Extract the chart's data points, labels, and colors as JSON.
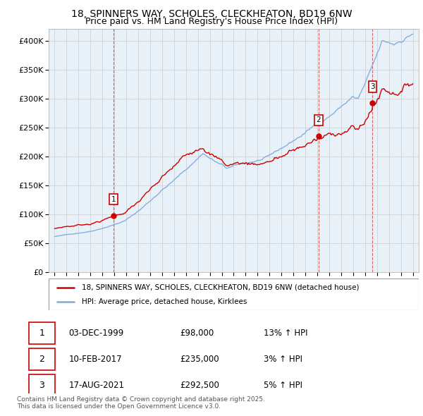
{
  "title_line1": "18, SPINNERS WAY, SCHOLES, CLECKHEATON, BD19 6NW",
  "title_line2": "Price paid vs. HM Land Registry's House Price Index (HPI)",
  "legend_label1": "18, SPINNERS WAY, SCHOLES, CLECKHEATON, BD19 6NW (detached house)",
  "legend_label2": "HPI: Average price, detached house, Kirklees",
  "sale_points": [
    {
      "label": "1",
      "date": "03-DEC-1999",
      "date_num": 1999.92,
      "price": 98000,
      "hpi_pct": "13% ↑ HPI"
    },
    {
      "label": "2",
      "date": "10-FEB-2017",
      "date_num": 2017.11,
      "price": 235000,
      "hpi_pct": "3% ↑ HPI"
    },
    {
      "label": "3",
      "date": "17-AUG-2021",
      "date_num": 2021.63,
      "price": 292500,
      "hpi_pct": "5% ↑ HPI"
    }
  ],
  "ylabel_ticks": [
    "£0",
    "£50K",
    "£100K",
    "£150K",
    "£200K",
    "£250K",
    "£300K",
    "£350K",
    "£400K"
  ],
  "ytick_values": [
    0,
    50000,
    100000,
    150000,
    200000,
    250000,
    300000,
    350000,
    400000
  ],
  "ylim": [
    0,
    420000
  ],
  "line_color_red": "#cc0000",
  "line_color_blue": "#7aaadd",
  "plot_bg_color": "#e8f0f8",
  "grid_color": "#cccccc",
  "background_color": "#ffffff",
  "footnote": "Contains HM Land Registry data © Crown copyright and database right 2025.\nThis data is licensed under the Open Government Licence v3.0.",
  "table_rows": [
    {
      "num": "1",
      "date": "03-DEC-1999",
      "price": "£98,000",
      "hpi": "13% ↑ HPI"
    },
    {
      "num": "2",
      "date": "10-FEB-2017",
      "price": "£235,000",
      "hpi": "3% ↑ HPI"
    },
    {
      "num": "3",
      "date": "17-AUG-2021",
      "price": "£292,500",
      "hpi": "5% ↑ HPI"
    }
  ]
}
